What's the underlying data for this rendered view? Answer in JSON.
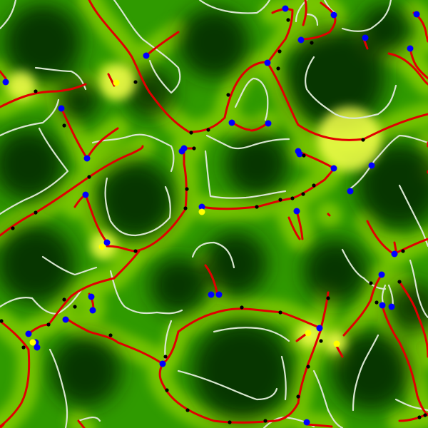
{
  "scene": {
    "kind": "topology-field",
    "colors": {
      "field_dark": "#002600",
      "field_mid": "#1f8a00",
      "field_light": "#79c600",
      "ridge_glow": "#f4ff4a",
      "red_curve": "#e00000",
      "contour": "#d8e6d0",
      "blue_point": "#0000ff",
      "yellow_point": "#ffff00",
      "black_point": "#000000"
    }
  }
}
